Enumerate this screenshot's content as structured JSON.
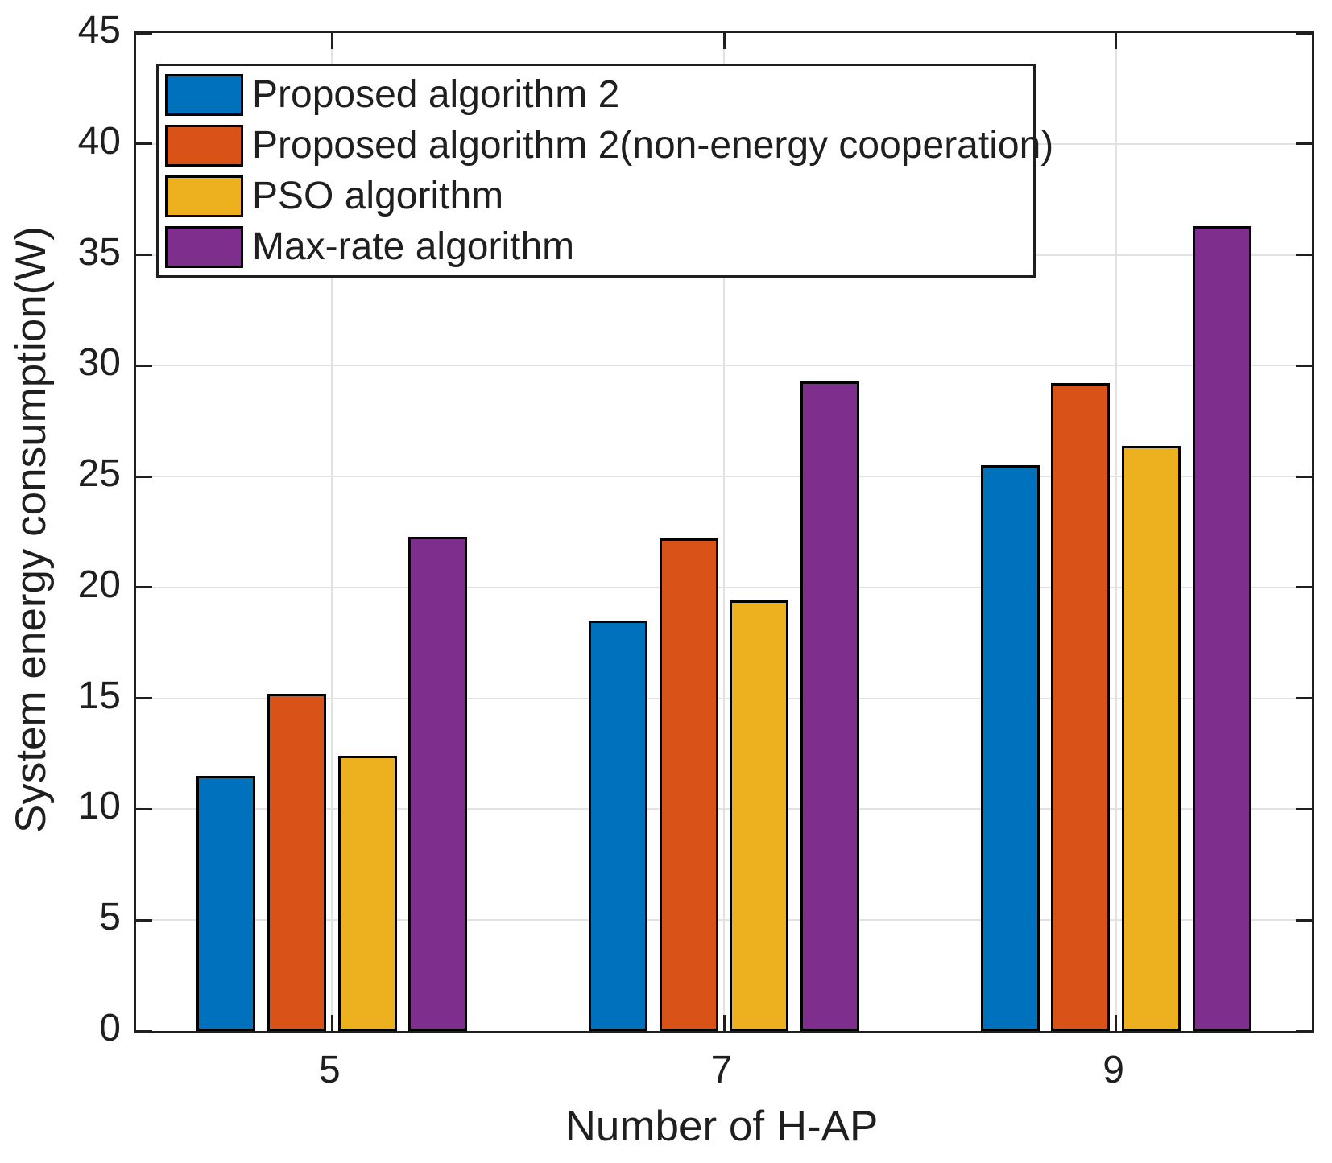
{
  "figure": {
    "background_color": "#ffffff",
    "axis_color": "#1f1f1f",
    "grid_color": "#e2e2e2",
    "bar_edge_color": "#000000",
    "text_color": "#1f1f1f"
  },
  "chart_data": {
    "type": "bar",
    "title": "",
    "xlabel": "Number of H-AP",
    "ylabel": "System energy consumption(W)",
    "categories": [
      "5",
      "7",
      "9"
    ],
    "series": [
      {
        "name": "Proposed algorithm 2",
        "color": "#0072BD",
        "values": [
          11.5,
          18.5,
          25.5
        ]
      },
      {
        "name": "Proposed algorithm 2(non-energy cooperation)",
        "color": "#D95319",
        "values": [
          15.2,
          22.2,
          29.2
        ]
      },
      {
        "name": "PSO algorithm",
        "color": "#EDB120",
        "values": [
          12.4,
          19.4,
          26.4
        ]
      },
      {
        "name": "Max-rate algorithm",
        "color": "#7E2F8E",
        "values": [
          22.3,
          29.3,
          36.3
        ]
      }
    ],
    "ylim": [
      0,
      45
    ],
    "yticks": [
      0,
      5,
      10,
      15,
      20,
      25,
      30,
      35,
      40,
      45
    ],
    "xticks": [
      "5",
      "7",
      "9"
    ],
    "grid": true,
    "legend_position": "top-left",
    "bar_group_offsets": [
      -0.27,
      -0.09,
      0.09,
      0.27
    ],
    "bar_width_fraction": 0.15
  }
}
